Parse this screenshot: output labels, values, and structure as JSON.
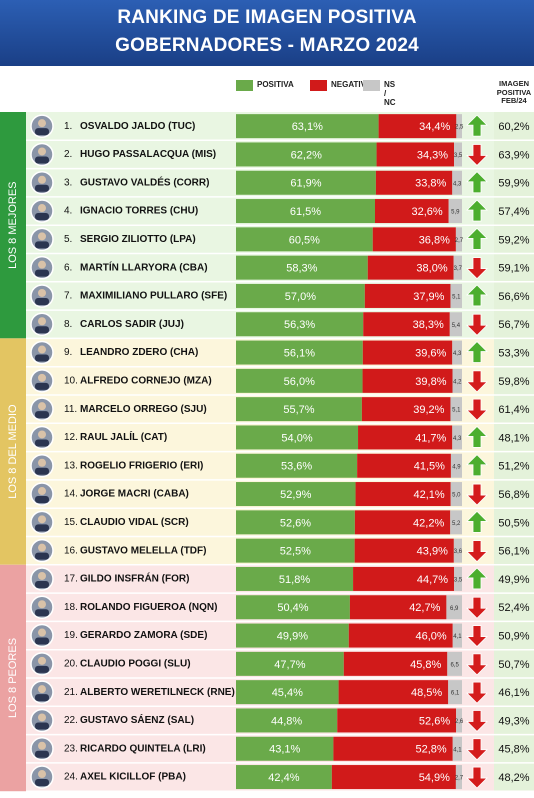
{
  "header": {
    "title_line1": "RANKING DE IMAGEN POSITIVA",
    "title_line2": "GOBERNADORES - MARZO 2024"
  },
  "legend": {
    "positiva": "POSITIVA",
    "negativa": "NEGATIVA",
    "nsnc": "NS / NC",
    "colors": {
      "positiva": "#6aaa4a",
      "negativa": "#d11a1a",
      "nsnc": "#c7c7c7"
    }
  },
  "feb_header": {
    "line1": "IMAGEN",
    "line2": "POSITIVA",
    "line3": "FEB/24"
  },
  "groups": [
    {
      "label": "LOS 8 MEJORES",
      "color": "#2e9a3e",
      "bg": "#e9f6e2",
      "first_rank": 1,
      "last_rank": 8
    },
    {
      "label": "LOS 8 DEL MEDIO",
      "color": "#e3c562",
      "bg": "#fcf6dc",
      "first_rank": 9,
      "last_rank": 16
    },
    {
      "label": "LOS 8 PEORES",
      "color": "#eba2a2",
      "bg": "#fbe6e6",
      "first_rank": 17,
      "last_rank": 24
    }
  ],
  "chart_data": {
    "type": "bar",
    "stacked": true,
    "orientation": "horizontal",
    "title": "RANKING DE IMAGEN POSITIVA GOBERNADORES - MARZO 2024",
    "series": [
      {
        "name": "POSITIVA",
        "color": "#6aaa4a"
      },
      {
        "name": "NEGATIVA",
        "color": "#d11a1a"
      },
      {
        "name": "NS / NC",
        "color": "#c7c7c7"
      }
    ],
    "rows": [
      {
        "rank": "1.",
        "name": "OSVALDO JALDO (TUC)",
        "pos": 63.1,
        "neg": 34.4,
        "nsnc": 2.5,
        "pos_label": "63,1%",
        "neg_label": "34,4%",
        "nsnc_label": "2,5",
        "trend": "up",
        "feb": "60,2%"
      },
      {
        "rank": "2.",
        "name": "HUGO PASSALACQUA (MIS)",
        "pos": 62.2,
        "neg": 34.3,
        "nsnc": 3.5,
        "pos_label": "62,2%",
        "neg_label": "34,3%",
        "nsnc_label": "3,5",
        "trend": "down",
        "feb": "63,9%"
      },
      {
        "rank": "3.",
        "name": "GUSTAVO VALDÉS (CORR)",
        "pos": 61.9,
        "neg": 33.8,
        "nsnc": 4.3,
        "pos_label": "61,9%",
        "neg_label": "33,8%",
        "nsnc_label": "4,3",
        "trend": "up",
        "feb": "59,9%"
      },
      {
        "rank": "4.",
        "name": "IGNACIO TORRES (CHU)",
        "pos": 61.5,
        "neg": 32.6,
        "nsnc": 5.9,
        "pos_label": "61,5%",
        "neg_label": "32,6%",
        "nsnc_label": "5,9",
        "trend": "up",
        "feb": "57,4%"
      },
      {
        "rank": "5.",
        "name": "SERGIO ZILIOTTO (LPA)",
        "pos": 60.5,
        "neg": 36.8,
        "nsnc": 2.7,
        "pos_label": "60,5%",
        "neg_label": "36,8%",
        "nsnc_label": "2,7",
        "trend": "up",
        "feb": "59,2%"
      },
      {
        "rank": "6.",
        "name": "MARTÍN LLARYORA (CBA)",
        "pos": 58.3,
        "neg": 38.0,
        "nsnc": 3.7,
        "pos_label": "58,3%",
        "neg_label": "38,0%",
        "nsnc_label": "3,7",
        "trend": "down",
        "feb": "59,1%"
      },
      {
        "rank": "7.",
        "name": "MAXIMILIANO PULLARO (SFE)",
        "pos": 57.0,
        "neg": 37.9,
        "nsnc": 5.1,
        "pos_label": "57,0%",
        "neg_label": "37,9%",
        "nsnc_label": "5,1",
        "trend": "up",
        "feb": "56,6%"
      },
      {
        "rank": "8.",
        "name": "CARLOS SADIR (JUJ)",
        "pos": 56.3,
        "neg": 38.3,
        "nsnc": 5.4,
        "pos_label": "56,3%",
        "neg_label": "38,3%",
        "nsnc_label": "5,4",
        "trend": "down",
        "feb": "56,7%"
      },
      {
        "rank": "9.",
        "name": "LEANDRO ZDERO (CHA)",
        "pos": 56.1,
        "neg": 39.6,
        "nsnc": 4.3,
        "pos_label": "56,1%",
        "neg_label": "39,6%",
        "nsnc_label": "4,3",
        "trend": "up",
        "feb": "53,3%"
      },
      {
        "rank": "10.",
        "name": "ALFREDO CORNEJO (MZA)",
        "pos": 56.0,
        "neg": 39.8,
        "nsnc": 4.2,
        "pos_label": "56,0%",
        "neg_label": "39,8%",
        "nsnc_label": "4,2",
        "trend": "down",
        "feb": "59,8%"
      },
      {
        "rank": "11.",
        "name": "MARCELO ORREGO (SJU)",
        "pos": 55.7,
        "neg": 39.2,
        "nsnc": 5.1,
        "pos_label": "55,7%",
        "neg_label": "39,2%",
        "nsnc_label": "5,1",
        "trend": "down",
        "feb": "61,4%"
      },
      {
        "rank": "12.",
        "name": "RAUL JALÍL (CAT)",
        "pos": 54.0,
        "neg": 41.7,
        "nsnc": 4.3,
        "pos_label": "54,0%",
        "neg_label": "41,7%",
        "nsnc_label": "4,3",
        "trend": "up",
        "feb": "48,1%"
      },
      {
        "rank": "13.",
        "name": "ROGELIO FRIGERIO (ERI)",
        "pos": 53.6,
        "neg": 41.5,
        "nsnc": 4.9,
        "pos_label": "53,6%",
        "neg_label": "41,5%",
        "nsnc_label": "4,9",
        "trend": "up",
        "feb": "51,2%"
      },
      {
        "rank": "14.",
        "name": "JORGE MACRI (CABA)",
        "pos": 52.9,
        "neg": 42.1,
        "nsnc": 5.0,
        "pos_label": "52,9%",
        "neg_label": "42,1%",
        "nsnc_label": "5,0",
        "trend": "down",
        "feb": "56,8%"
      },
      {
        "rank": "15.",
        "name": "CLAUDIO VIDAL (SCR)",
        "pos": 52.6,
        "neg": 42.2,
        "nsnc": 5.2,
        "pos_label": "52,6%",
        "neg_label": "42,2%",
        "nsnc_label": "5,2",
        "trend": "up",
        "feb": "50,5%"
      },
      {
        "rank": "16.",
        "name": "GUSTAVO MELELLA (TDF)",
        "pos": 52.5,
        "neg": 43.9,
        "nsnc": 3.6,
        "pos_label": "52,5%",
        "neg_label": "43,9%",
        "nsnc_label": "3,6",
        "trend": "down",
        "feb": "56,1%"
      },
      {
        "rank": "17.",
        "name": "GILDO INSFRÁN (FOR)",
        "pos": 51.8,
        "neg": 44.7,
        "nsnc": 3.5,
        "pos_label": "51,8%",
        "neg_label": "44,7%",
        "nsnc_label": "3,5",
        "trend": "up",
        "feb": "49,9%"
      },
      {
        "rank": "18.",
        "name": "ROLANDO FIGUEROA (NQN)",
        "pos": 50.4,
        "neg": 42.7,
        "nsnc": 6.9,
        "pos_label": "50,4%",
        "neg_label": "42,7%",
        "nsnc_label": "6,9",
        "trend": "down",
        "feb": "52,4%"
      },
      {
        "rank": "19.",
        "name": "GERARDO ZAMORA (SDE)",
        "pos": 49.9,
        "neg": 46.0,
        "nsnc": 4.1,
        "pos_label": "49,9%",
        "neg_label": "46,0%",
        "nsnc_label": "4,1",
        "trend": "down",
        "feb": "50,9%"
      },
      {
        "rank": "20.",
        "name": "CLAUDIO POGGI (SLU)",
        "pos": 47.7,
        "neg": 45.8,
        "nsnc": 6.5,
        "pos_label": "47,7%",
        "neg_label": "45,8%",
        "nsnc_label": "6,5",
        "trend": "down",
        "feb": "50,7%"
      },
      {
        "rank": "21.",
        "name": "ALBERTO WERETILNECK (RNE)",
        "pos": 45.4,
        "neg": 48.5,
        "nsnc": 6.1,
        "pos_label": "45,4%",
        "neg_label": "48,5%",
        "nsnc_label": "6,1",
        "trend": "down",
        "feb": "46,1%"
      },
      {
        "rank": "22.",
        "name": "GUSTAVO SÁENZ (SAL)",
        "pos": 44.8,
        "neg": 52.6,
        "nsnc": 2.6,
        "pos_label": "44,8%",
        "neg_label": "52,6%",
        "nsnc_label": "2,6",
        "trend": "down",
        "feb": "49,3%"
      },
      {
        "rank": "23.",
        "name": "RICARDO QUINTELA (LRI)",
        "pos": 43.1,
        "neg": 52.8,
        "nsnc": 4.1,
        "pos_label": "43,1%",
        "neg_label": "52,8%",
        "nsnc_label": "4,1",
        "trend": "down",
        "feb": "45,8%"
      },
      {
        "rank": "24.",
        "name": "AXEL KICILLOF (PBA)",
        "pos": 42.4,
        "neg": 54.9,
        "nsnc": 2.7,
        "pos_label": "42,4%",
        "neg_label": "54,9%",
        "nsnc_label": "2,7",
        "trend": "down",
        "feb": "48,2%"
      }
    ],
    "trend_colors": {
      "up": "#4cae2e",
      "down": "#d41c1c"
    }
  }
}
